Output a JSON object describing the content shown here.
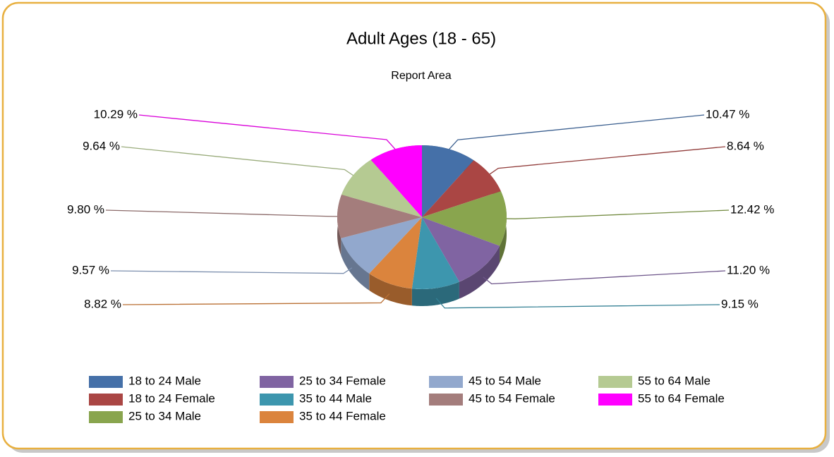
{
  "chart_data": {
    "type": "pie",
    "title": "Adult Ages (18 - 65)",
    "subtitle": "Report Area",
    "categories": [
      "18 to 24 Male",
      "18 to 24 Female",
      "25 to 34 Male",
      "25 to 34 Female",
      "35 to 44 Male",
      "35 to 44 Female",
      "45 to 54 Male",
      "45 to 54 Female",
      "55 to 64 Male",
      "55 to 64 Female"
    ],
    "values": [
      10.47,
      8.64,
      12.42,
      11.2,
      9.15,
      8.82,
      9.57,
      9.8,
      9.64,
      10.29
    ],
    "value_labels": [
      "10.47 %",
      "8.64 %",
      "12.42 %",
      "11.20 %",
      "9.15 %",
      "8.82 %",
      "9.57 %",
      "9.80 %",
      "9.64 %",
      "10.29 %"
    ],
    "colors": [
      "#4570a8",
      "#aa4644",
      "#89a54e",
      "#8064a2",
      "#3d96ae",
      "#db843d",
      "#92a8cd",
      "#a47d7c",
      "#b5ca92",
      "#ff00ff"
    ],
    "legend": "bottom"
  }
}
